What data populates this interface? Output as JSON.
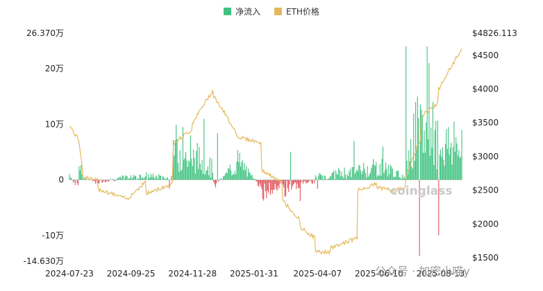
{
  "legend": {
    "inflow_label": "净流入",
    "price_label": "ETH价格",
    "inflow_color": "#3fc27f",
    "outflow_color": "#e0525c",
    "price_color": "#e4b85a"
  },
  "watermark": "coinglass",
  "source_watermark": "公众号 · 加密小喵y",
  "chart_data": {
    "type": "bar+line",
    "left_axis": {
      "ticks": [
        {
          "value": 26.37,
          "label": "26.370万"
        },
        {
          "value": 20,
          "label": "20万"
        },
        {
          "value": 10,
          "label": "10万"
        },
        {
          "value": 0,
          "label": "0"
        },
        {
          "value": -10,
          "label": "-10万"
        },
        {
          "value": -14.63,
          "label": "-14.630万"
        }
      ],
      "range": [
        -14.63,
        26.37
      ]
    },
    "right_axis": {
      "ticks": [
        {
          "value": 4826.113,
          "label": "$4826.113"
        },
        {
          "value": 4500,
          "label": "$4500"
        },
        {
          "value": 4000,
          "label": "$4000"
        },
        {
          "value": 3500,
          "label": "$3500"
        },
        {
          "value": 3000,
          "label": "$3000"
        },
        {
          "value": 2500,
          "label": "$2500"
        },
        {
          "value": 2000,
          "label": "$2000"
        },
        {
          "value": 1500,
          "label": "$1500"
        }
      ],
      "range": [
        1450,
        4826.113
      ]
    },
    "x_ticks": [
      {
        "index": 0,
        "label": "2024-07-23"
      },
      {
        "index": 64,
        "label": "2024-09-25"
      },
      {
        "index": 128,
        "label": "2024-11-28"
      },
      {
        "index": 192,
        "label": "2025-01-31"
      },
      {
        "index": 258,
        "label": "2025-04-07"
      },
      {
        "index": 322,
        "label": "2025-06-10"
      },
      {
        "index": 386,
        "label": "2025-08-13"
      }
    ],
    "segments": [
      {
        "x0": 0,
        "x1": 10,
        "flow0": 1.5,
        "flow1": -3.0,
        "price0": 3460,
        "price1": 3230
      },
      {
        "x0": 10,
        "x1": 14,
        "flow0": 2.0,
        "flow1": 3.5,
        "price0": 3230,
        "price1": 2780
      },
      {
        "x0": 14,
        "x1": 30,
        "flow0": 0.5,
        "flow1": -0.8,
        "price0": 2700,
        "price1": 2640
      },
      {
        "x0": 30,
        "x1": 62,
        "flow0": -0.5,
        "flow1": 0.8,
        "price0": 2520,
        "price1": 2360
      },
      {
        "x0": 62,
        "x1": 80,
        "flow0": 0.6,
        "flow1": 1.2,
        "price0": 2400,
        "price1": 2640
      },
      {
        "x0": 80,
        "x1": 108,
        "flow0": 1.0,
        "flow1": 0.5,
        "price0": 2450,
        "price1": 2600
      },
      {
        "x0": 108,
        "x1": 128,
        "flow0": 9.0,
        "flow1": 4.0,
        "price0": 3200,
        "price1": 3400
      },
      {
        "x0": 128,
        "x1": 150,
        "flow0": 6.0,
        "flow1": 3.0,
        "price0": 3500,
        "price1": 4000
      },
      {
        "x0": 150,
        "x1": 174,
        "flow0": -1.5,
        "flow1": 4.0,
        "price0": 3900,
        "price1": 3350
      },
      {
        "x0": 174,
        "x1": 200,
        "flow0": 5.0,
        "flow1": -2.0,
        "price0": 3300,
        "price1": 3200
      },
      {
        "x0": 200,
        "x1": 222,
        "flow0": -3.0,
        "flow1": -1.5,
        "price0": 2800,
        "price1": 2600
      },
      {
        "x0": 222,
        "x1": 240,
        "flow0": -2.5,
        "flow1": -1.0,
        "price0": 2350,
        "price1": 2050
      },
      {
        "x0": 240,
        "x1": 256,
        "flow0": -1.0,
        "flow1": -0.5,
        "price0": 1950,
        "price1": 1790
      },
      {
        "x0": 256,
        "x1": 272,
        "flow0": 1.0,
        "flow1": 0.5,
        "price0": 1590,
        "price1": 1580
      },
      {
        "x0": 272,
        "x1": 300,
        "flow0": 1.5,
        "flow1": 2.0,
        "price0": 1650,
        "price1": 1800
      },
      {
        "x0": 300,
        "x1": 320,
        "flow0": 2.5,
        "flow1": 3.5,
        "price0": 2500,
        "price1": 2600
      },
      {
        "x0": 320,
        "x1": 340,
        "flow0": 3.5,
        "flow1": 2.0,
        "price0": 2550,
        "price1": 2480
      },
      {
        "x0": 340,
        "x1": 350,
        "flow0": 1.5,
        "flow1": 0.5,
        "price0": 2500,
        "price1": 2560
      },
      {
        "x0": 350,
        "x1": 366,
        "flow0": 6.0,
        "flow1": 14.0,
        "price0": 2700,
        "price1": 3300
      },
      {
        "x0": 366,
        "x1": 384,
        "flow0": 12.0,
        "flow1": 9.0,
        "price0": 3600,
        "price1": 3800
      },
      {
        "x0": 384,
        "x1": 408,
        "flow0": 10.0,
        "flow1": 7.0,
        "price0": 4000,
        "price1": 4600
      }
    ],
    "spikes": [
      {
        "index": 104,
        "value": -1.6
      },
      {
        "index": 118,
        "value": 9.5
      },
      {
        "index": 126,
        "value": 8.0
      },
      {
        "index": 140,
        "value": 11.0
      },
      {
        "index": 154,
        "value": 8.4
      },
      {
        "index": 230,
        "value": 5.0
      },
      {
        "index": 240,
        "value": -3.8
      },
      {
        "index": 258,
        "value": -1.6
      },
      {
        "index": 296,
        "value": 7.0
      },
      {
        "index": 326,
        "value": 6.0
      },
      {
        "index": 350,
        "value": 24.0
      },
      {
        "index": 360,
        "value": 14.0
      },
      {
        "index": 364,
        "value": -13.7
      },
      {
        "index": 372,
        "value": 24.0
      },
      {
        "index": 374,
        "value": 21.0
      },
      {
        "index": 378,
        "value": 14.0
      },
      {
        "index": 380,
        "value": 9.0
      },
      {
        "index": 384,
        "value": -10.0
      },
      {
        "index": 400,
        "value": 10.5
      }
    ],
    "max_index": 408,
    "latest_price": 4600,
    "title": ""
  }
}
